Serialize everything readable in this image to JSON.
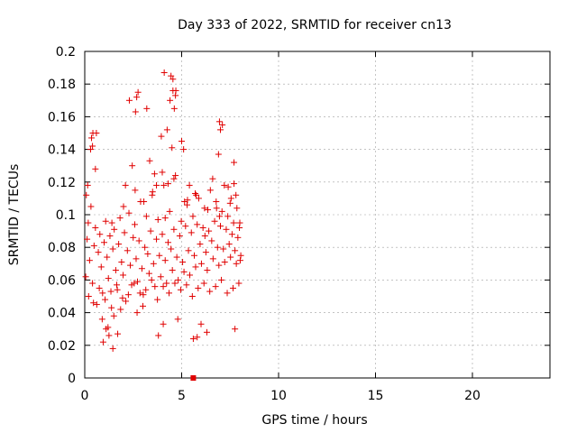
{
  "chart_data": {
    "type": "scatter",
    "title": "Day 333 of 2022, SRMTID for receiver cn13",
    "xlabel": "GPS time / hours",
    "ylabel": "SRMTID / TECUs",
    "xlim": [
      0,
      24
    ],
    "ylim": [
      0,
      0.2
    ],
    "xticks": [
      0,
      5,
      10,
      15,
      20
    ],
    "yticks": [
      0,
      0.02,
      0.04,
      0.06,
      0.08,
      0.1,
      0.12,
      0.14,
      0.16,
      0.18,
      0.2
    ],
    "grid": true,
    "marker": "+",
    "color": "#e00000",
    "series": [
      {
        "name": "SRMTID",
        "x": [
          0.05,
          0.12,
          0.18,
          0.25,
          0.32,
          0.4,
          0.48,
          0.55,
          0.62,
          0.7,
          0.78,
          0.85,
          0.92,
          1.0,
          1.08,
          1.15,
          1.22,
          1.3,
          1.38,
          1.45,
          1.52,
          1.6,
          1.68,
          1.75,
          1.82,
          1.9,
          1.98,
          2.05,
          2.12,
          2.2,
          2.28,
          2.35,
          2.42,
          2.5,
          2.58,
          2.65,
          2.72,
          2.8,
          2.88,
          2.95,
          3.02,
          3.1,
          3.18,
          3.25,
          3.32,
          3.4,
          3.48,
          3.55,
          3.62,
          3.7,
          3.78,
          3.85,
          3.92,
          4.0,
          4.08,
          4.15,
          4.22,
          4.3,
          4.38,
          4.45,
          4.52,
          4.6,
          4.68,
          4.75,
          4.82,
          4.9,
          4.98,
          5.05,
          5.12,
          5.2,
          5.28,
          5.35,
          5.42,
          5.5,
          5.58,
          5.65,
          5.72,
          5.8,
          5.88,
          5.95,
          6.02,
          6.1,
          6.18,
          6.25,
          6.32,
          6.4,
          6.48,
          6.55,
          6.62,
          6.7,
          6.78,
          6.85,
          6.92,
          7.0,
          7.08,
          7.15,
          7.22,
          7.3,
          7.38,
          7.45,
          7.52,
          7.6,
          7.68,
          7.75,
          7.82,
          7.9,
          7.98,
          8.05,
          0.08,
          0.3,
          0.55,
          0.9,
          1.2,
          1.5,
          1.85,
          2.1,
          2.45,
          2.7,
          3.0,
          3.35,
          3.6,
          3.95,
          4.25,
          4.5,
          4.8,
          5.1,
          5.4,
          5.7,
          6.0,
          6.3,
          6.6,
          6.9,
          7.2,
          7.5,
          7.8,
          8.0,
          0.2,
          0.45,
          0.75,
          1.05,
          1.35,
          1.65,
          1.95,
          2.25,
          2.55,
          2.85,
          3.15,
          3.45,
          3.75,
          4.05,
          4.35,
          4.65,
          4.95,
          5.25,
          5.55,
          5.85,
          6.15,
          6.45,
          6.75,
          7.05,
          7.35,
          7.65,
          7.95,
          0.15,
          0.6,
          1.1,
          1.7,
          2.3,
          2.75,
          3.2,
          3.7,
          4.1,
          4.4,
          4.55,
          4.7,
          5.0,
          5.6,
          6.2,
          6.8,
          7.1,
          7.4,
          7.7,
          8.02,
          0.35,
          0.95,
          1.4,
          2.0,
          2.6,
          3.05,
          3.5,
          4.0,
          4.6,
          5.15,
          5.75,
          6.35,
          6.95,
          7.55,
          7.85,
          2.62,
          2.68,
          4.45,
          4.55,
          6.95,
          7.0,
          0.4,
          0.42,
          4.62,
          4.68,
          1.25,
          1.45,
          3.8,
          4.05,
          4.15,
          4.3,
          5.3,
          5.8,
          7.7,
          7.75
        ],
        "y": [
          0.062,
          0.085,
          0.095,
          0.072,
          0.105,
          0.058,
          0.081,
          0.092,
          0.045,
          0.077,
          0.088,
          0.068,
          0.052,
          0.083,
          0.096,
          0.074,
          0.061,
          0.087,
          0.043,
          0.079,
          0.091,
          0.066,
          0.054,
          0.082,
          0.098,
          0.071,
          0.063,
          0.089,
          0.047,
          0.078,
          0.101,
          0.069,
          0.057,
          0.086,
          0.094,
          0.073,
          0.059,
          0.084,
          0.108,
          0.067,
          0.051,
          0.08,
          0.099,
          0.076,
          0.064,
          0.09,
          0.112,
          0.07,
          0.056,
          0.085,
          0.097,
          0.075,
          0.062,
          0.088,
          0.118,
          0.072,
          0.058,
          0.083,
          0.102,
          0.079,
          0.066,
          0.091,
          0.124,
          0.074,
          0.06,
          0.087,
          0.096,
          0.071,
          0.065,
          0.093,
          0.106,
          0.078,
          0.063,
          0.089,
          0.099,
          0.075,
          0.068,
          0.094,
          0.11,
          0.082,
          0.07,
          0.092,
          0.104,
          0.077,
          0.066,
          0.09,
          0.115,
          0.084,
          0.073,
          0.096,
          0.108,
          0.08,
          0.069,
          0.093,
          0.102,
          0.079,
          0.071,
          0.091,
          0.099,
          0.082,
          0.074,
          0.088,
          0.095,
          0.078,
          0.07,
          0.086,
          0.092,
          0.075,
          0.112,
          0.14,
          0.128,
          0.036,
          0.031,
          0.038,
          0.042,
          0.118,
          0.13,
          0.04,
          0.044,
          0.133,
          0.125,
          0.148,
          0.152,
          0.141,
          0.036,
          0.14,
          0.118,
          0.113,
          0.033,
          0.028,
          0.122,
          0.137,
          0.118,
          0.107,
          0.112,
          0.095,
          0.05,
          0.046,
          0.055,
          0.048,
          0.053,
          0.057,
          0.049,
          0.051,
          0.058,
          0.052,
          0.054,
          0.06,
          0.048,
          0.056,
          0.052,
          0.058,
          0.054,
          0.057,
          0.05,
          0.055,
          0.058,
          0.053,
          0.056,
          0.06,
          0.052,
          0.055,
          0.058,
          0.118,
          0.15,
          0.03,
          0.027,
          0.17,
          0.175,
          0.165,
          0.118,
          0.187,
          0.17,
          0.183,
          0.176,
          0.145,
          0.024,
          0.087,
          0.104,
          0.155,
          0.117,
          0.132,
          0.072,
          0.147,
          0.022,
          0.095,
          0.105,
          0.115,
          0.108,
          0.114,
          0.126,
          0.122,
          0.108,
          0.112,
          0.103,
          0.099,
          0.11,
          0.104,
          0.163,
          0.172,
          0.185,
          0.176,
          0.157,
          0.152,
          0.142,
          0.15,
          0.165,
          0.173,
          0.026,
          0.018,
          0.026,
          0.033,
          0.098,
          0.119,
          0.109,
          0.025,
          0.119,
          0.03
        ],
        "special_point": {
          "x": 5.6,
          "y": 0.0,
          "marker": "filled-square"
        }
      }
    ]
  }
}
